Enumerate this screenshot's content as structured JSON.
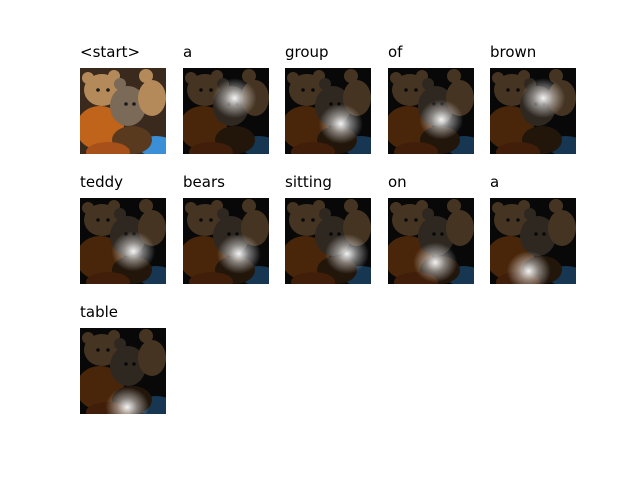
{
  "figure": {
    "tokens": [
      {
        "word": "<start>",
        "attention": null
      },
      {
        "word": "a",
        "attention": [
          0.6,
          0.35
        ]
      },
      {
        "word": "group",
        "attention": [
          0.65,
          0.65
        ]
      },
      {
        "word": "of",
        "attention": [
          0.62,
          0.6
        ]
      },
      {
        "word": "brown",
        "attention": [
          0.62,
          0.35
        ]
      },
      {
        "word": "teddy",
        "attention": [
          0.62,
          0.62
        ]
      },
      {
        "word": "bears",
        "attention": [
          0.65,
          0.65
        ]
      },
      {
        "word": "sitting",
        "attention": [
          0.72,
          0.65
        ]
      },
      {
        "word": "on",
        "attention": [
          0.55,
          0.75
        ]
      },
      {
        "word": "a",
        "attention": [
          0.45,
          0.85
        ]
      },
      {
        "word": "table",
        "attention": [
          0.55,
          0.92
        ]
      }
    ],
    "colors": {
      "background": "#ffffff",
      "text": "#000000",
      "bear_dark": "#5a3a1e",
      "bear_light": "#b58a5a",
      "bear_orange": "#c0641c",
      "blue_cloth": "#3b8fd6",
      "highlight": "#ffffff"
    }
  }
}
